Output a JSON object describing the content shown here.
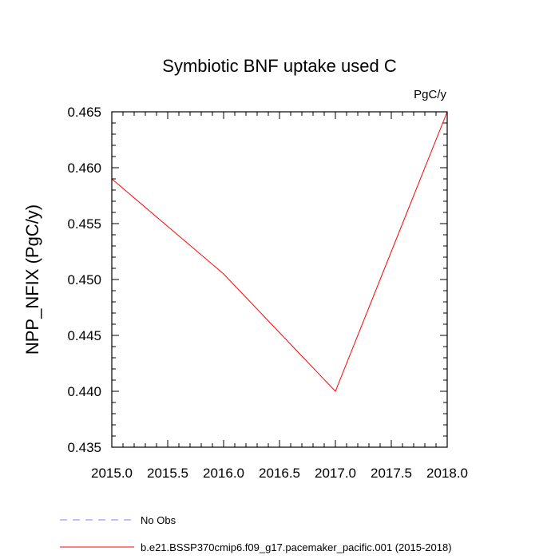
{
  "chart_data": {
    "type": "line",
    "title": "Symbiotic BNF uptake used C",
    "units_label": "PgC/y",
    "ylabel": "NPP_NFIX  (PgC/y)",
    "xlabel": "",
    "xlim": [
      2015.0,
      2018.0
    ],
    "ylim": [
      0.435,
      0.465
    ],
    "xticks": [
      "2015.0",
      "2015.5",
      "2016.0",
      "2016.5",
      "2017.0",
      "2017.5",
      "2018.0"
    ],
    "yticks": [
      "0.435",
      "0.440",
      "0.445",
      "0.450",
      "0.455",
      "0.460",
      "0.465"
    ],
    "grid": false,
    "legend_position": "bottom",
    "series": [
      {
        "name": "b.e21.BSSP370cmip6.f09_g17.pacemaker_pacific.001 (2015-2018)",
        "color": "#ff0000",
        "dash": "solid",
        "x": [
          2015,
          2016,
          2017,
          2018
        ],
        "y": [
          0.459,
          0.4505,
          0.44,
          0.465
        ]
      }
    ],
    "legend": [
      {
        "label": "No Obs",
        "color": "#8080ff",
        "dash": "dashed"
      },
      {
        "label": "b.e21.BSSP370cmip6.f09_g17.pacemaker_pacific.001 (2015-2018)",
        "color": "#ff0000",
        "dash": "solid"
      }
    ]
  }
}
